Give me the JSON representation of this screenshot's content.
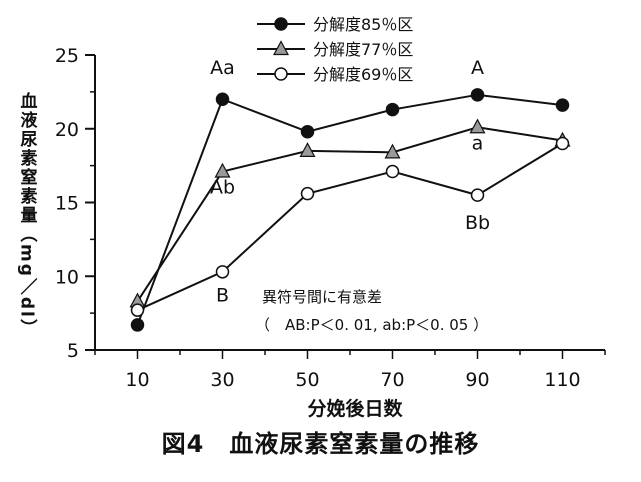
{
  "chart_data": {
    "type": "line",
    "x": [
      10,
      30,
      50,
      70,
      90,
      110
    ],
    "xlabel": "分娩後日数",
    "ylabel": "血液尿素窒素量（mg／dl）",
    "ylim": [
      5,
      25
    ],
    "yticks": [
      5,
      10,
      15,
      20,
      25
    ],
    "grid": false,
    "legend": "top-center",
    "series": [
      {
        "name": "分解度85％区",
        "marker": "filled-circle",
        "values": [
          6.7,
          22.0,
          19.8,
          21.3,
          22.3,
          21.6
        ]
      },
      {
        "name": "分解度77％区",
        "marker": "gray-triangle",
        "values": [
          8.3,
          17.1,
          18.5,
          18.4,
          20.1,
          19.2
        ]
      },
      {
        "name": "分解度69％区",
        "marker": "open-circle",
        "values": [
          7.7,
          10.3,
          15.6,
          17.1,
          15.5,
          19.0
        ]
      }
    ],
    "annotations": [
      {
        "text": "Aa",
        "x": 30,
        "y": 23.7
      },
      {
        "text": "Ab",
        "x": 30,
        "y": 15.6
      },
      {
        "text": "B",
        "x": 30,
        "y": 8.3
      },
      {
        "text": "A",
        "x": 90,
        "y": 23.7
      },
      {
        "text": "a",
        "x": 90,
        "y": 18.6
      },
      {
        "text": "Bb",
        "x": 90,
        "y": 13.2
      }
    ],
    "note": {
      "line1": "異符号間に有意差",
      "line2": "（　AB:P＜0. 01, ab:P＜0. 05 ）"
    }
  },
  "caption": "図4　血液尿素窒素量の推移",
  "colors": {
    "line": "#111111",
    "triangle_fill": "#9a9a9a",
    "marker_fill": "#111111",
    "open_fill": "#ffffff"
  }
}
